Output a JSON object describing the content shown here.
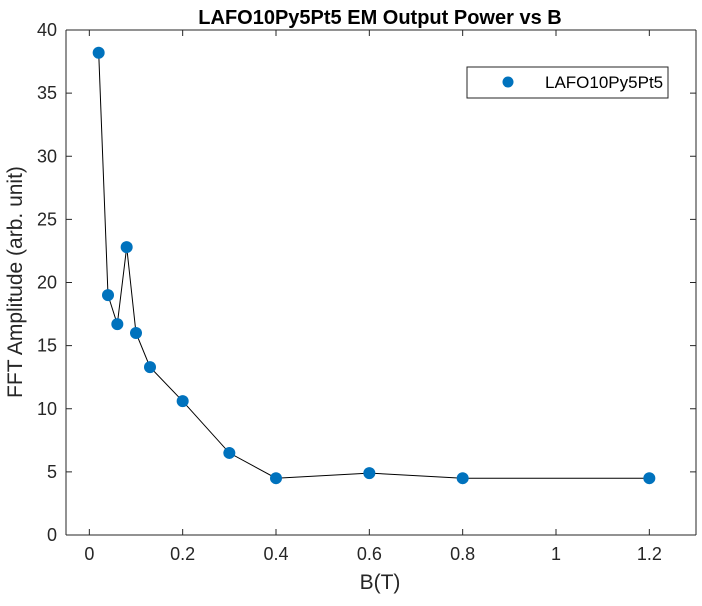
{
  "chart_data": {
    "type": "scatter",
    "title": "LAFO10Py5Pt5 EM Output Power vs B",
    "xlabel": "B(T)",
    "ylabel": "FFT Amplitude (arb. unit)",
    "xlim": [
      -0.05,
      1.3
    ],
    "ylim": [
      0,
      40
    ],
    "xticks": [
      0,
      0.2,
      0.4,
      0.6,
      0.8,
      1,
      1.2
    ],
    "xtick_labels": [
      "0",
      "0.2",
      "0.4",
      "0.6",
      "0.8",
      "1",
      "1.2"
    ],
    "yticks": [
      0,
      5,
      10,
      15,
      20,
      25,
      30,
      35,
      40
    ],
    "ytick_labels": [
      "0",
      "5",
      "10",
      "15",
      "20",
      "25",
      "30",
      "35",
      "40"
    ],
    "grid": false,
    "legend_position": "top-right",
    "series": [
      {
        "name": "LAFO10Py5Pt5",
        "marker_color": "#0072BD",
        "line_color": "#000000",
        "x": [
          0.02,
          0.04,
          0.06,
          0.08,
          0.1,
          0.13,
          0.2,
          0.3,
          0.4,
          0.6,
          0.8,
          1.2
        ],
        "y": [
          38.2,
          19.0,
          16.7,
          22.8,
          16.0,
          13.3,
          10.6,
          6.5,
          4.5,
          4.9,
          4.5,
          4.5
        ]
      }
    ]
  }
}
